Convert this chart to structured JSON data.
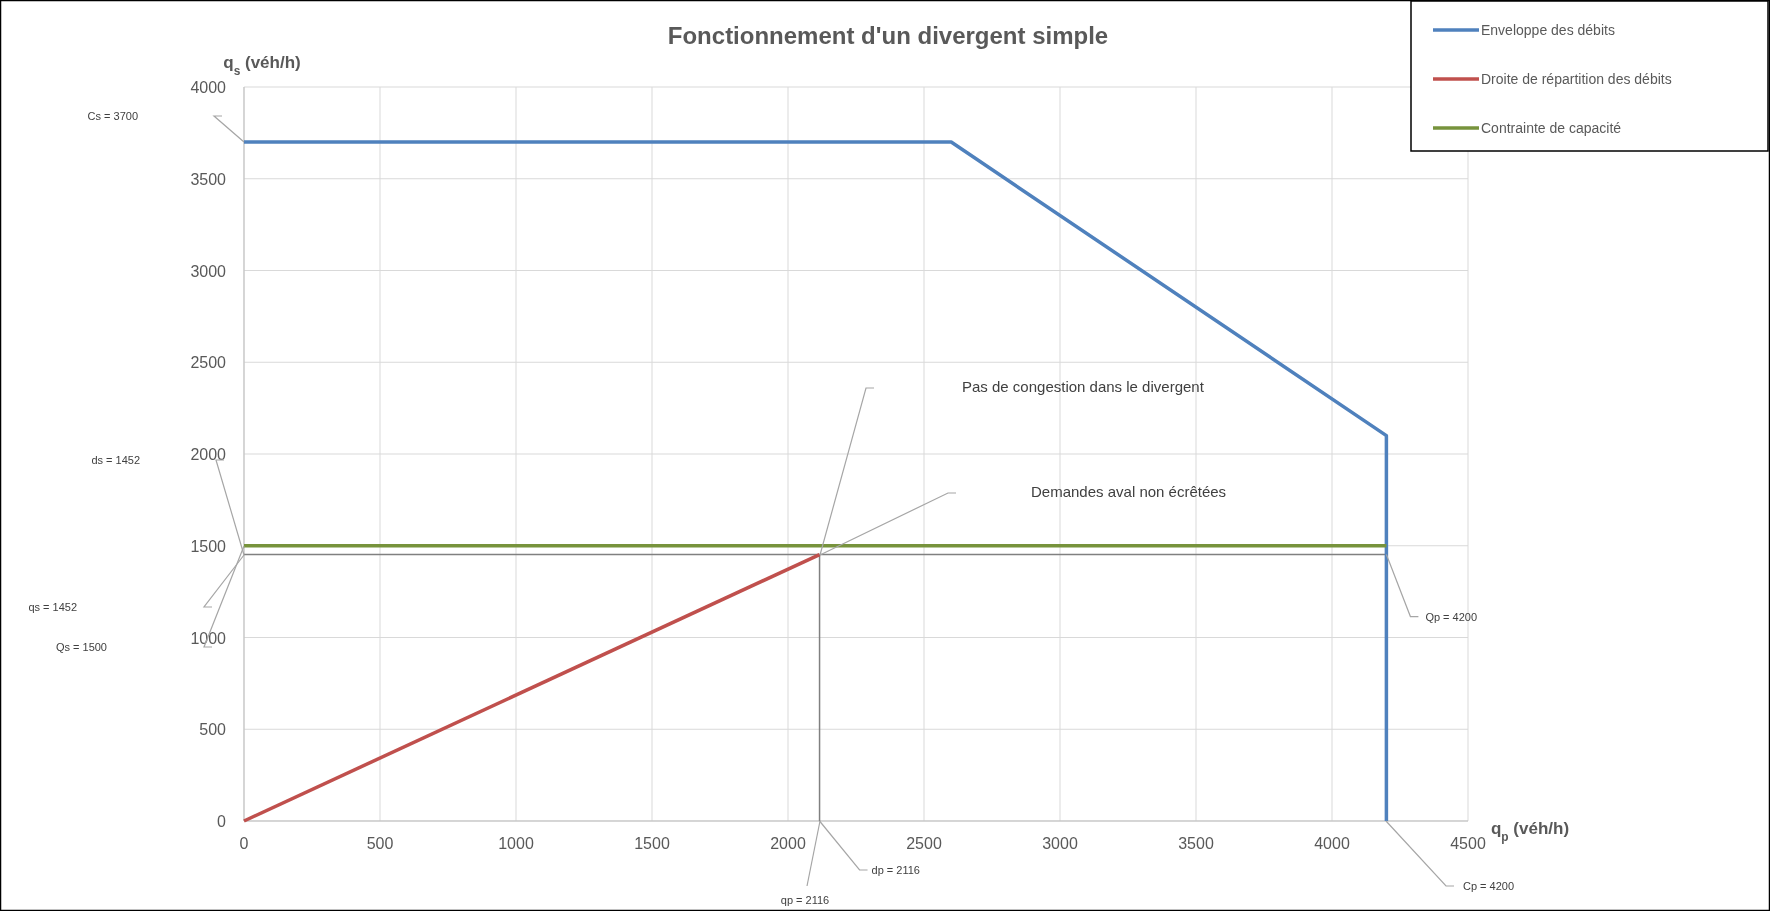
{
  "chart_data": {
    "type": "line",
    "title": "Fonctionnement d'un divergent simple",
    "xlabel": "q$_{p}$ (véh/h)",
    "ylabel": "q$_{s}$ (véh/h)",
    "xlim": [
      0,
      4500
    ],
    "ylim": [
      0,
      4000
    ],
    "xticks": [
      0,
      500,
      1000,
      1500,
      2000,
      2500,
      3000,
      3500,
      4000,
      4500
    ],
    "yticks": [
      0,
      500,
      1000,
      1500,
      2000,
      2500,
      3000,
      3500,
      4000
    ],
    "grid": true,
    "legend": "top right",
    "series": [
      {
        "name": "Enveloppe des débits",
        "color": "#4f81bd",
        "x": [
          0,
          2600,
          4200,
          4200
        ],
        "values": [
          3700,
          3700,
          2100,
          0
        ]
      },
      {
        "name": "Droite de répartition des débits",
        "color": "#c0504d",
        "x": [
          0,
          2116
        ],
        "values": [
          0,
          1452
        ]
      },
      {
        "name": "Contrainte de capacité",
        "color": "#77933c",
        "x": [
          0,
          4200
        ],
        "values": [
          1500,
          1500
        ]
      },
      {
        "color": "#808080",
        "x": [
          0,
          4200,
          4200
        ],
        "values": [
          1452,
          1452,
          2100
        ]
      },
      {
        "color": "#808080",
        "x": [
          2116,
          2116
        ],
        "values": [
          0,
          1452
        ]
      }
    ],
    "annotations": [
      "Cs = 3700",
      "ds = 1452",
      "qs = 1452",
      "Qs = 1500",
      {
        "text": "Qp = 4200",
        "x": 4200,
        "y": 1452
      },
      "Cp = 4200",
      {
        "text": "dp = 2116",
        "x": 2116,
        "y": 0
      },
      "qp = 2116",
      "Pas de congestion dans le divergent",
      "Demandes aval non écrêtées"
    ]
  }
}
